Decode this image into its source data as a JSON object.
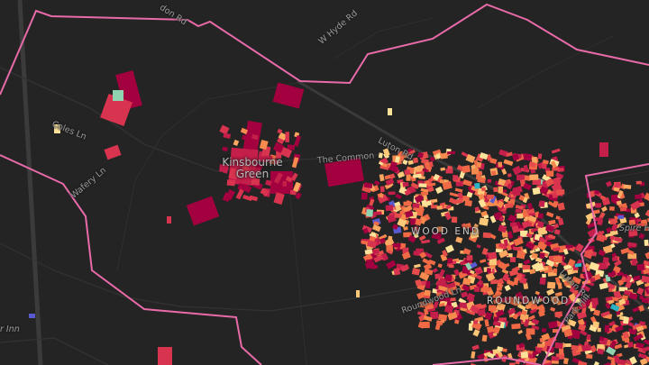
{
  "map": {
    "background": "#242424",
    "boundary_color": "#e86aa8",
    "road_color": "#3a3a3a",
    "building_palette": [
      "#a3003f",
      "#c41e4a",
      "#d9344f",
      "#e64d4a",
      "#f06a45",
      "#f78b4e",
      "#fba860",
      "#fdc877",
      "#fde39a",
      "#8fd3b0",
      "#2bb3c4",
      "#5a5ad0"
    ],
    "labels": {
      "hendon_rd": "don Rd",
      "w_hyde_rd": "W Hyde Rd",
      "coles_ln": "Coles Ln",
      "wafery_ln": "Wafery Ln",
      "kinsbourne_green": "Kinsbourne Green",
      "the_common": "The Common",
      "luton_rd_1": "Luton Rd",
      "luton_rd_2": "Luton Rd",
      "wood_end": "WOOD END",
      "roundwood": "ROUNDWOOD",
      "roundwood_ln": "Roundwood Ln",
      "park_hill": "Park Hill",
      "spire": "Spire H",
      "inn": "r Inn"
    }
  }
}
